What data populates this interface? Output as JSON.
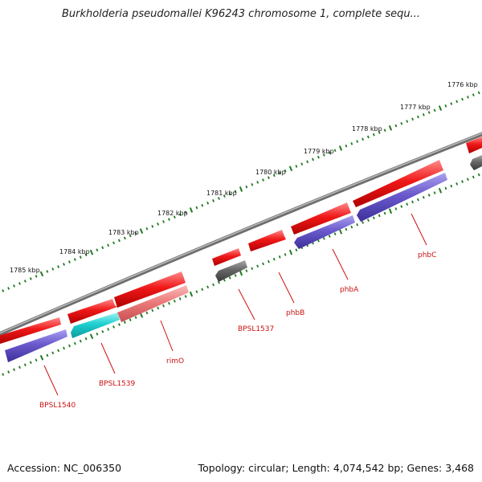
{
  "title": "Burkholderia pseudomallei K96243 chromosome 1, complete sequ...",
  "footer": {
    "accession": "Accession: NC_006350",
    "summary": "Topology: circular; Length: 4,074,542 bp; Genes: 3,468"
  },
  "colors": {
    "backbone": "#808080",
    "tick": "#1f7a1f",
    "label": "#cc1111",
    "gene_red": "#e81010",
    "gene_blue": "#6a5acd",
    "gene_cyan": "#1fcfcf",
    "gene_pink": "#ec7b7b",
    "gene_gray": "#666666"
  },
  "scale": {
    "ticks": [
      {
        "label": "1776 kbp"
      },
      {
        "label": "1777 kbp"
      },
      {
        "label": "1778 kbp"
      },
      {
        "label": "1779 kbp"
      },
      {
        "label": "1780 kbp"
      },
      {
        "label": "1781 kbp"
      },
      {
        "label": "1782 kbp"
      },
      {
        "label": "1783 kbp"
      },
      {
        "label": "1784 kbp"
      },
      {
        "label": "1785 kbp"
      }
    ]
  },
  "gene_labels": [
    {
      "text": "BPSL1540"
    },
    {
      "text": "BPSL1539"
    },
    {
      "text": "rimO"
    },
    {
      "text": "BPSL1537"
    },
    {
      "text": "phbB"
    },
    {
      "text": "phbA"
    },
    {
      "text": "phbC"
    }
  ]
}
